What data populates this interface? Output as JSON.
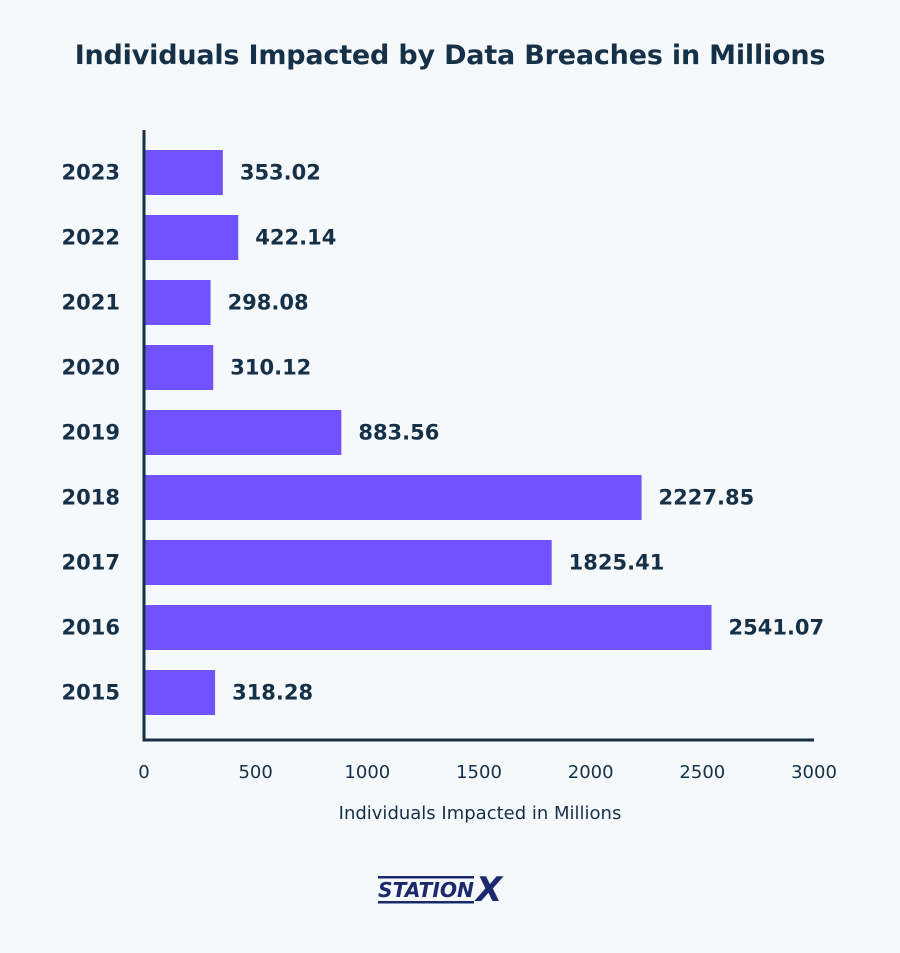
{
  "chart_data": {
    "type": "bar",
    "orientation": "horizontal",
    "title": "Individuals Impacted by Data Breaches in Millions",
    "xlabel": "Individuals Impacted in Millions",
    "ylabel": "",
    "categories": [
      "2023",
      "2022",
      "2021",
      "2020",
      "2019",
      "2018",
      "2017",
      "2016",
      "2015"
    ],
    "values": [
      353.02,
      422.14,
      298.08,
      310.12,
      883.56,
      2227.85,
      1825.41,
      2541.07,
      318.28
    ],
    "value_labels": [
      "353.02",
      "422.14",
      "298.08",
      "310.12",
      "883.56",
      "2227.85",
      "1825.41",
      "2541.07",
      "318.28"
    ],
    "xlim": [
      0,
      3000
    ],
    "xticks": [
      0,
      500,
      1000,
      1500,
      2000,
      2500,
      3000
    ],
    "xtick_labels": [
      "0",
      "500",
      "1000",
      "1500",
      "2000",
      "2500",
      "3000"
    ],
    "grid": false,
    "bar_color": "#7152ff",
    "axis_color": "#163047",
    "text_color": "#163047"
  },
  "branding": {
    "logo_text_main": "STATION",
    "logo_text_accent": "X",
    "logo_color": "#1c2a6b"
  }
}
